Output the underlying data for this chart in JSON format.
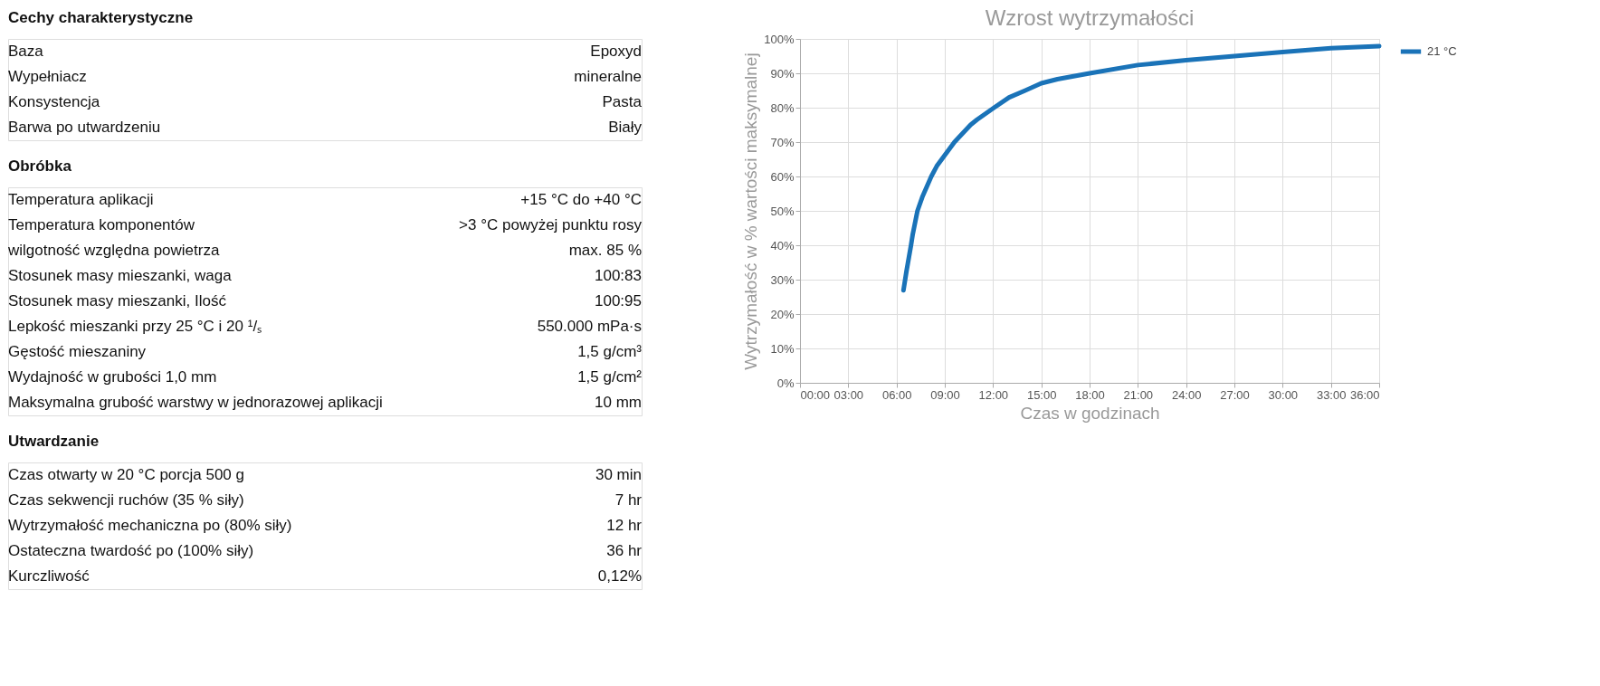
{
  "chart_data": [
    {
      "type": "other",
      "title": "Cechy charakterystyczne",
      "annotations": [
        "Baza",
        "Epoxyd",
        "Wypełniacz",
        "mineralne",
        "Konsystencja",
        "Pasta",
        "Barwa po utwardzeniu",
        "Biały"
      ]
    },
    {
      "type": "other",
      "title": "Obróbka",
      "annotations": [
        "Temperatura aplikacji",
        "+15 °C do +40 °C",
        "Temperatura komponentów",
        ">3 °C powyżej punktu rosy",
        "wilgotność względna powietrza",
        "max. 85 %",
        "Stosunek masy mieszanki, waga",
        "100:83",
        "Stosunek masy mieszanki, Ilość",
        "100:95",
        "Lepkość mieszanki przy 25 °C i 20 ¹/ₛ",
        "550.000 mPa·s",
        "Gęstość mieszaniny",
        "1,5 g/cm³",
        "Wydajność w grubości 1,0 mm",
        "1,5 g/cm²",
        "Maksymalna grubość warstwy w jednorazowej aplikacji",
        "10 mm"
      ]
    },
    {
      "type": "other",
      "title": "Utwardzanie",
      "annotations": [
        "Czas otwarty w 20 °C porcja 500 g",
        "30 min",
        "Czas sekwencji ruchów  (35 % siły)",
        "7 hr",
        "Wytrzymałość mechaniczna po (80% siły)",
        "12 hr",
        "Ostateczna twardość po (100% siły)",
        "36 hr",
        "Kurczliwość",
        "0,12%"
      ]
    },
    {
      "type": "line",
      "title": "Wzrost wytrzymałości",
      "xlabel": "Czas w godzinach",
      "ylabel": "Wytrzymałość w % wartości maksymalnej",
      "xlim": [
        0,
        36
      ],
      "ylim": [
        0,
        100
      ],
      "xticks": [
        {
          "value": 0,
          "label": "00:00"
        },
        {
          "value": 3,
          "label": "03:00"
        },
        {
          "value": 6,
          "label": "06:00"
        },
        {
          "value": 9,
          "label": "09:00"
        },
        {
          "value": 12,
          "label": "12:00"
        },
        {
          "value": 15,
          "label": "15:00"
        },
        {
          "value": 18,
          "label": "18:00"
        },
        {
          "value": 21,
          "label": "21:00"
        },
        {
          "value": 24,
          "label": "24:00"
        },
        {
          "value": 27,
          "label": "27:00"
        },
        {
          "value": 30,
          "label": "30:00"
        },
        {
          "value": 33,
          "label": "33:00"
        },
        {
          "value": 36,
          "label": "36:00"
        }
      ],
      "yticks": [
        {
          "value": 0,
          "label": "0%"
        },
        {
          "value": 10,
          "label": "10%"
        },
        {
          "value": 20,
          "label": "20%"
        },
        {
          "value": 30,
          "label": "30%"
        },
        {
          "value": 40,
          "label": "40%"
        },
        {
          "value": 50,
          "label": "50%"
        },
        {
          "value": 60,
          "label": "60%"
        },
        {
          "value": 70,
          "label": "70%"
        },
        {
          "value": 80,
          "label": "80%"
        },
        {
          "value": 90,
          "label": "90%"
        },
        {
          "value": 100,
          "label": "100%"
        }
      ],
      "grid": true,
      "legend": "right",
      "marker": "none",
      "line_style": "solid",
      "x": [
        6.43,
        6.62,
        6.9,
        7.0,
        7.3,
        7.6,
        8.16,
        8.5,
        9.6,
        10.6,
        11,
        12.06,
        13,
        14,
        15,
        16,
        18,
        21,
        24,
        27,
        30,
        33,
        36
      ],
      "series": [
        {
          "name": "21 °C",
          "color": "#1a73b8",
          "values": [
            26.9,
            32.5,
            40,
            43,
            50,
            54,
            60,
            63,
            70,
            75,
            76.5,
            80,
            83,
            85,
            87.1,
            88.3,
            90,
            92.4,
            93.8,
            95,
            96.2,
            97.3,
            97.9
          ]
        }
      ]
    }
  ]
}
